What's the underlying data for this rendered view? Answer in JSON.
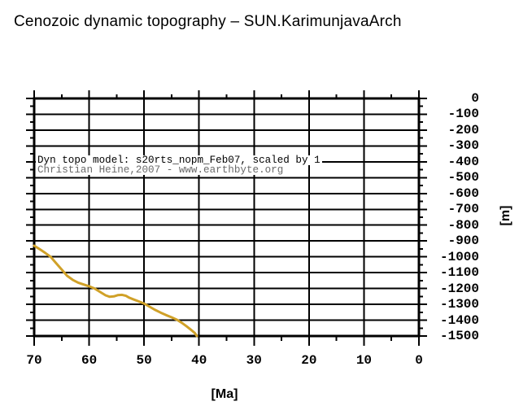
{
  "title": "Cenozoic dynamic topography – SUN.KarimunjavaArch",
  "annotation": {
    "line1": "Dyn topo model: s20rts_nopm_Feb07, scaled by 1",
    "line2": "Christian Heine,2007 - www.earthbyte.org",
    "line2_color": "#6b6b6b"
  },
  "colors": {
    "background": "#ffffff",
    "frame": "#000000",
    "grid": "#000000",
    "line": "#d0a128",
    "annotation_gray": "#6b6b6b"
  },
  "chart_data": {
    "type": "line",
    "title": "Cenozoic dynamic topography – SUN.KarimunjavaArch",
    "xlabel": "[Ma]",
    "ylabel": "[m]",
    "xlim": [
      70,
      0
    ],
    "ylim": [
      -1500,
      0
    ],
    "x_major_ticks": [
      70,
      60,
      50,
      40,
      30,
      20,
      10,
      0
    ],
    "x_minor_ticks": [
      65,
      55,
      45,
      35,
      25,
      15,
      5
    ],
    "y_major_ticks": [
      0,
      -100,
      -200,
      -300,
      -400,
      -500,
      -600,
      -700,
      -800,
      -900,
      -1000,
      -1100,
      -1200,
      -1300,
      -1400,
      -1500
    ],
    "y_minor_ticks": [
      -50,
      -150,
      -250,
      -350,
      -450,
      -550,
      -650,
      -750,
      -850,
      -950,
      -1050,
      -1150,
      -1250,
      -1350,
      -1450
    ],
    "grid": true,
    "legend": "none",
    "series": [
      {
        "name": "dynamic-topography",
        "color": "#d0a128",
        "points": [
          [
            70,
            -930
          ],
          [
            69,
            -952
          ],
          [
            68,
            -975
          ],
          [
            67,
            -1000
          ],
          [
            66,
            -1040
          ],
          [
            65,
            -1080
          ],
          [
            64,
            -1120
          ],
          [
            63,
            -1145
          ],
          [
            62,
            -1163
          ],
          [
            61,
            -1175
          ],
          [
            60,
            -1186
          ],
          [
            59,
            -1200
          ],
          [
            58,
            -1222
          ],
          [
            57,
            -1243
          ],
          [
            56.3,
            -1252
          ],
          [
            55.5,
            -1250
          ],
          [
            54.8,
            -1242
          ],
          [
            54,
            -1240
          ],
          [
            53.3,
            -1246
          ],
          [
            52.7,
            -1258
          ],
          [
            52,
            -1268
          ],
          [
            51,
            -1281
          ],
          [
            50,
            -1295
          ],
          [
            49,
            -1315
          ],
          [
            48,
            -1335
          ],
          [
            47,
            -1352
          ],
          [
            46,
            -1368
          ],
          [
            45,
            -1382
          ],
          [
            44,
            -1398
          ],
          [
            43,
            -1420
          ],
          [
            42.3,
            -1438
          ],
          [
            41.5,
            -1460
          ],
          [
            40.8,
            -1480
          ],
          [
            40.4,
            -1500
          ]
        ]
      }
    ]
  }
}
